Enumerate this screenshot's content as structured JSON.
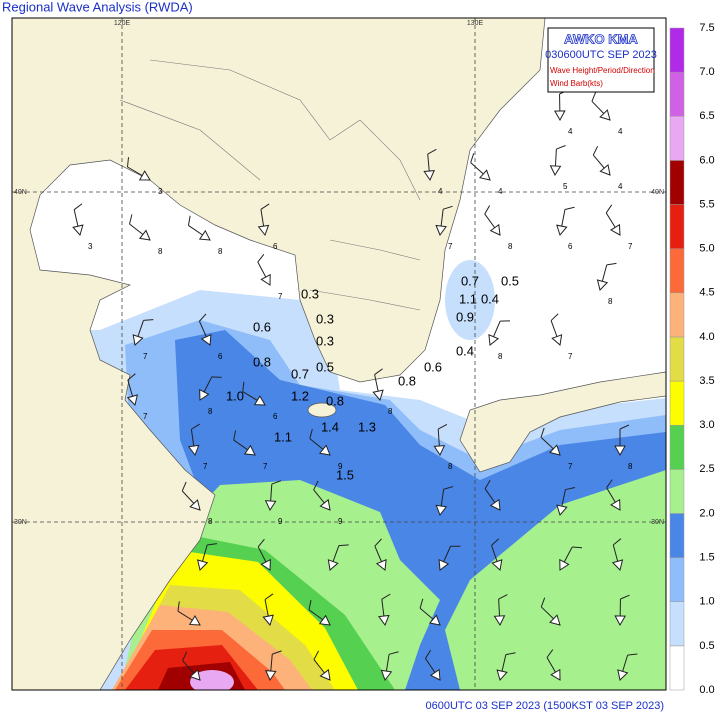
{
  "title": "Regional Wave Analysis (RWDA)",
  "header": {
    "lines": [
      "AWKO   KMA",
      "030600UTC SEP 2023"
    ],
    "notes": [
      "Wave Height/Period/Direction",
      "Wind Barb(kts)"
    ]
  },
  "grid_labels": {
    "lon": [
      "120E",
      "130E"
    ],
    "lat": [
      "40N",
      "30N"
    ]
  },
  "legend": {
    "labels": [
      "0.0",
      "0.5",
      "1.0",
      "1.5",
      "2.0",
      "2.5",
      "3.0",
      "3.5",
      "4.0",
      "4.5",
      "5.0",
      "5.5",
      "6.0",
      "6.5",
      "7.0",
      "7.5"
    ],
    "colors": [
      "#ffffff",
      "#c6dffc",
      "#8fbdfa",
      "#4a86e6",
      "#a6f08e",
      "#55d050",
      "#fdfd00",
      "#e2dc46",
      "#fdb27a",
      "#fc6a3a",
      "#e62010",
      "#a00000",
      "#e8a8f2",
      "#d060e4",
      "#b02ae8"
    ]
  },
  "wave_labels": [
    "0.7",
    "0.5",
    "1.1",
    "0.4",
    "0.9",
    "0.3",
    "0.3",
    "0.3",
    "0.6",
    "0.8",
    "0.5",
    "0.7",
    "0.8",
    "0.6",
    "0.4",
    "1.0",
    "1.2",
    "0.8",
    "1.4",
    "1.3",
    "1.1",
    "1.5"
  ],
  "period_labels": [
    "3",
    "3",
    "8",
    "6",
    "8",
    "4",
    "4",
    "4",
    "4",
    "5",
    "4",
    "7",
    "8",
    "6",
    "7",
    "8",
    "7",
    "7",
    "6",
    "8",
    "7",
    "8",
    "7",
    "6",
    "8",
    "7",
    "7",
    "9",
    "8",
    "7",
    "8",
    "8",
    "9",
    "9"
  ],
  "footer": "0600UTC 03 SEP 2023 (1500KST 03 SEP 2023)"
}
